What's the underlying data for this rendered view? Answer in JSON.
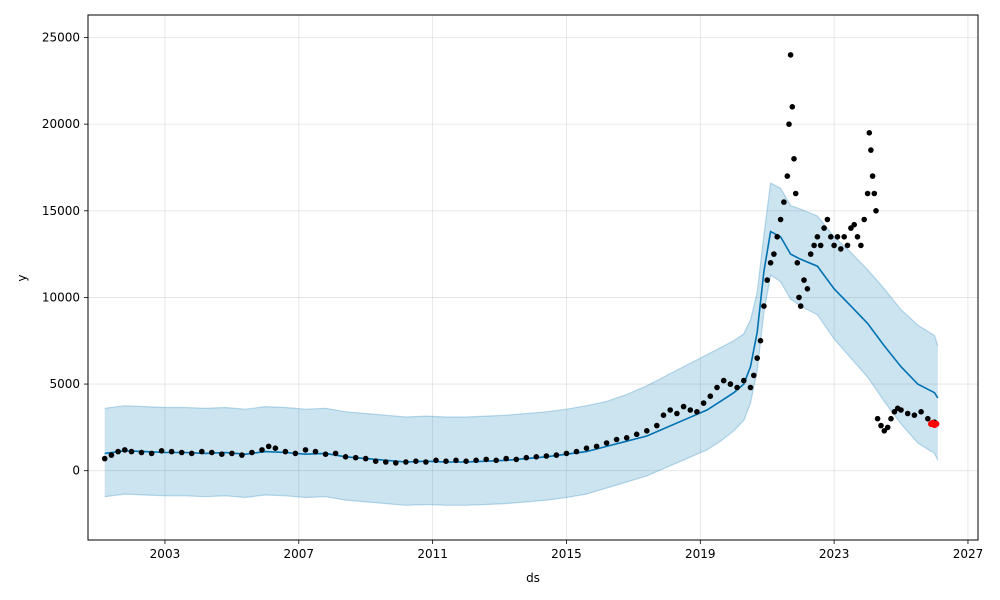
{
  "chart_data": {
    "type": "scatter",
    "title": "",
    "xlabel": "ds",
    "ylabel": "y",
    "x_is_date": true,
    "xlim": [
      2000.7,
      2027.3
    ],
    "ylim": [
      -4000,
      26300
    ],
    "grid": true,
    "x_ticks": [
      2003,
      2007,
      2011,
      2015,
      2019,
      2023,
      2027
    ],
    "x_tick_labels": [
      "2003",
      "2007",
      "2011",
      "2015",
      "2019",
      "2023",
      "2027"
    ],
    "y_ticks": [
      0,
      5000,
      10000,
      15000,
      20000,
      25000
    ],
    "y_tick_labels": [
      "0",
      "5000",
      "10000",
      "15000",
      "20000",
      "25000"
    ],
    "colors": {
      "observed": "#000000",
      "forecast_line": "#0072B2",
      "band_fill": "#0072B2",
      "recent_points": "#ff0000"
    },
    "series": [
      {
        "role": "observed",
        "x": [
          2001.2,
          2001.4,
          2001.6,
          2001.8,
          2002.0,
          2002.3,
          2002.6,
          2002.9,
          2003.2,
          2003.5,
          2003.8,
          2004.1,
          2004.4,
          2004.7,
          2005.0,
          2005.3,
          2005.6,
          2005.9,
          2006.1,
          2006.3,
          2006.6,
          2006.9,
          2007.2,
          2007.5,
          2007.8,
          2008.1,
          2008.4,
          2008.7,
          2009.0,
          2009.3,
          2009.6,
          2009.9,
          2010.2,
          2010.5,
          2010.8,
          2011.1,
          2011.4,
          2011.7,
          2012.0,
          2012.3,
          2012.6,
          2012.9,
          2013.2,
          2013.5,
          2013.8,
          2014.1,
          2014.4,
          2014.7,
          2015.0,
          2015.3,
          2015.6,
          2015.9,
          2016.2,
          2016.5,
          2016.8,
          2017.1,
          2017.4,
          2017.7,
          2017.9,
          2018.1,
          2018.3,
          2018.5,
          2018.7,
          2018.9,
          2019.1,
          2019.3,
          2019.5,
          2019.7,
          2019.9,
          2020.1,
          2020.3,
          2020.5,
          2020.6,
          2020.7,
          2020.8,
          2020.9,
          2021.0,
          2021.1,
          2021.2,
          2021.3,
          2021.4,
          2021.5,
          2021.6,
          2021.65,
          2021.7,
          2021.75,
          2021.8,
          2021.85,
          2021.9,
          2021.95,
          2022.0,
          2022.1,
          2022.2,
          2022.3,
          2022.4,
          2022.5,
          2022.6,
          2022.7,
          2022.8,
          2022.9,
          2023.0,
          2023.1,
          2023.2,
          2023.3,
          2023.4,
          2023.5,
          2023.6,
          2023.7,
          2023.8,
          2023.9,
          2024.0,
          2024.05,
          2024.1,
          2024.15,
          2024.2,
          2024.25,
          2024.3,
          2024.4,
          2024.5,
          2024.6,
          2024.7,
          2024.8,
          2024.9,
          2025.0,
          2025.2,
          2025.4,
          2025.6,
          2025.8,
          2026.0
        ],
        "y": [
          700,
          900,
          1100,
          1200,
          1100,
          1050,
          1000,
          1150,
          1100,
          1050,
          1000,
          1100,
          1050,
          950,
          1000,
          900,
          1050,
          1200,
          1400,
          1300,
          1100,
          1000,
          1200,
          1100,
          950,
          1000,
          800,
          750,
          700,
          550,
          500,
          450,
          500,
          550,
          500,
          600,
          550,
          600,
          550,
          600,
          650,
          600,
          700,
          650,
          750,
          800,
          850,
          900,
          1000,
          1100,
          1300,
          1400,
          1600,
          1800,
          1900,
          2100,
          2300,
          2600,
          3200,
          3500,
          3300,
          3700,
          3500,
          3400,
          3900,
          4300,
          4800,
          5200,
          5000,
          4800,
          5200,
          4800,
          5500,
          6500,
          7500,
          9500,
          11000,
          12000,
          12500,
          13500,
          14500,
          15500,
          17000,
          20000,
          24000,
          21000,
          18000,
          16000,
          12000,
          10000,
          9500,
          11000,
          10500,
          12500,
          13000,
          13500,
          13000,
          14000,
          14500,
          13500,
          13000,
          13500,
          12800,
          13500,
          13000,
          14000,
          14200,
          13500,
          13000,
          14500,
          16000,
          19500,
          18500,
          17000,
          16000,
          15000,
          3000,
          2600,
          2300,
          2500,
          3000,
          3400,
          3600,
          3500,
          3300,
          3200,
          3400,
          3000,
          2800
        ],
        "size": 2.8
      },
      {
        "role": "recent_points",
        "x": [
          2025.9,
          2025.95,
          2026.0,
          2026.05
        ],
        "y": [
          2700,
          2750,
          2650,
          2700
        ],
        "size": 3.2
      },
      {
        "role": "forecast_line",
        "x": [
          2001.2,
          2001.8,
          2002.4,
          2003.0,
          2003.6,
          2004.2,
          2004.8,
          2005.4,
          2006.0,
          2006.6,
          2007.2,
          2007.8,
          2008.4,
          2009.0,
          2009.6,
          2010.2,
          2010.8,
          2011.4,
          2012.0,
          2012.6,
          2013.2,
          2013.8,
          2014.4,
          2015.0,
          2015.6,
          2016.2,
          2016.8,
          2017.4,
          2018.0,
          2018.6,
          2019.2,
          2019.6,
          2020.0,
          2020.3,
          2020.5,
          2020.7,
          2020.9,
          2021.1,
          2021.4,
          2021.7,
          2022.0,
          2022.5,
          2023.0,
          2023.5,
          2024.0,
          2024.5,
          2025.0,
          2025.5,
          2026.0,
          2026.1
        ],
        "y": [
          1000,
          1150,
          1100,
          1050,
          1050,
          1000,
          1050,
          950,
          1100,
          1050,
          950,
          1000,
          800,
          700,
          600,
          500,
          550,
          500,
          500,
          550,
          600,
          700,
          800,
          950,
          1100,
          1400,
          1700,
          2000,
          2500,
          3000,
          3500,
          4000,
          4500,
          5000,
          6000,
          8000,
          11500,
          13800,
          13500,
          12500,
          12200,
          11800,
          10500,
          9500,
          8500,
          7200,
          6000,
          5000,
          4500,
          4200
        ],
        "band_lower": [
          -1500,
          -1350,
          -1400,
          -1450,
          -1450,
          -1500,
          -1450,
          -1550,
          -1400,
          -1450,
          -1550,
          -1500,
          -1700,
          -1800,
          -1900,
          -2000,
          -1950,
          -2000,
          -2000,
          -1950,
          -1900,
          -1800,
          -1700,
          -1550,
          -1350,
          -1000,
          -650,
          -300,
          200,
          700,
          1200,
          1700,
          2300,
          2900,
          3900,
          5800,
          9100,
          11300,
          10900,
          9900,
          9500,
          9000,
          7600,
          6500,
          5400,
          4000,
          2700,
          1600,
          1000,
          600
        ],
        "band_upper": [
          3600,
          3750,
          3700,
          3650,
          3650,
          3600,
          3650,
          3550,
          3700,
          3650,
          3550,
          3600,
          3400,
          3300,
          3200,
          3100,
          3150,
          3100,
          3100,
          3150,
          3200,
          3300,
          3400,
          3550,
          3750,
          4000,
          4400,
          4900,
          5500,
          6100,
          6700,
          7100,
          7500,
          7900,
          8700,
          10300,
          13600,
          16600,
          16300,
          15300,
          15100,
          14700,
          13500,
          12600,
          11600,
          10500,
          9300,
          8400,
          7800,
          7200
        ]
      }
    ]
  }
}
